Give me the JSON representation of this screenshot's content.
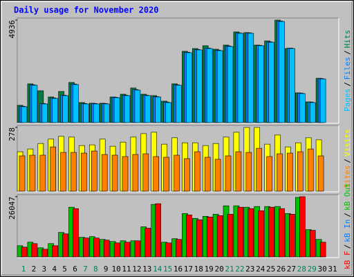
{
  "chart_data": [
    {
      "type": "bar",
      "title": "Daily usage for November 2020",
      "ylim": [
        0,
        4936
      ],
      "yticks": [
        4936
      ],
      "legend_separator": "/",
      "series": [
        {
          "name": "Pages",
          "color": "#00c0ff",
          "values": [
            767,
            1801,
            900,
            1167,
            1301,
            1834,
            900,
            900,
            900,
            1201,
            1301,
            1567,
            1301,
            1234,
            967,
            1801,
            3368,
            3502,
            3568,
            3468,
            3668,
            4302,
            4302,
            3702,
            3869,
            4869,
            3568,
            1401,
            967,
            2101,
            0
          ]
        },
        {
          "name": "Files",
          "color": "#0080ff",
          "values": [
            790,
            1820,
            920,
            1190,
            1320,
            1860,
            920,
            920,
            920,
            1220,
            1320,
            1590,
            1320,
            1250,
            990,
            1820,
            3390,
            3520,
            3590,
            3490,
            3690,
            4320,
            4320,
            3720,
            3890,
            4890,
            3590,
            1420,
            990,
            2120,
            0
          ]
        },
        {
          "name": "Hits",
          "color": "#008040",
          "values": [
            834,
            1868,
            1534,
            1234,
            1501,
            1934,
            967,
            934,
            934,
            1234,
            1367,
            1668,
            1367,
            1301,
            1034,
            1868,
            3435,
            3568,
            3702,
            3535,
            3735,
            4369,
            4336,
            3735,
            3935,
            4936,
            3568,
            1434,
            1000,
            2134,
            0
          ]
        }
      ]
    },
    {
      "type": "bar",
      "ylim": [
        0,
        278
      ],
      "yticks": [
        278
      ],
      "legend_separator": "/",
      "series": [
        {
          "name": "Sites",
          "color": "#ff8000",
          "values": [
            154,
            157,
            157,
            193,
            169,
            169,
            166,
            175,
            160,
            157,
            151,
            160,
            163,
            151,
            148,
            157,
            142,
            172,
            148,
            139,
            154,
            172,
            169,
            187,
            151,
            163,
            166,
            172,
            184,
            154,
            0
          ]
        },
        {
          "name": "Visits",
          "color": "#ffff00",
          "values": [
            172,
            184,
            208,
            227,
            239,
            236,
            199,
            202,
            227,
            196,
            214,
            236,
            251,
            257,
            205,
            233,
            211,
            211,
            199,
            208,
            236,
            257,
            278,
            278,
            205,
            245,
            193,
            211,
            233,
            224,
            0
          ]
        }
      ]
    },
    {
      "type": "bar",
      "ylim": [
        0,
        26047
      ],
      "yticks": [
        26047
      ],
      "legend_separator": "/",
      "categories": [
        "1",
        "2",
        "3",
        "4",
        "5",
        "6",
        "7",
        "8",
        "9",
        "10",
        "11",
        "12",
        "13",
        "14",
        "15",
        "16",
        "17",
        "18",
        "19",
        "20",
        "21",
        "22",
        "23",
        "24",
        "25",
        "26",
        "27",
        "28",
        "29",
        "30",
        "31"
      ],
      "category_colors": [
        "#00805c",
        "#000000",
        "#000000",
        "#000000",
        "#000000",
        "#000000",
        "#00805c",
        "#00805c",
        "#000000",
        "#000000",
        "#000000",
        "#000000",
        "#000000",
        "#00805c",
        "#00805c",
        "#000000",
        "#000000",
        "#000000",
        "#000000",
        "#000000",
        "#00805c",
        "#00805c",
        "#000000",
        "#000000",
        "#000000",
        "#000000",
        "#000000",
        "#00805c",
        "#00805c",
        "#000000",
        "#000000"
      ],
      "series": [
        {
          "name": "kB F",
          "color": "#ff0000",
          "values": [
            4241,
            5755,
            3332,
            4846,
            9996,
            20900,
            8178,
            8178,
            7270,
            6058,
            6361,
            6967,
            12419,
            23020,
            6058,
            7573,
            18174,
            16054,
            17265,
            17871,
            18477,
            21506,
            20900,
            19992,
            21506,
            20900,
            18477,
            26047,
            11510,
            6361,
            0
          ]
        },
        {
          "name": "kB In",
          "color": "#0080ff",
          "values": [
            0,
            0,
            0,
            0,
            0,
            0,
            0,
            0,
            0,
            0,
            0,
            0,
            0,
            0,
            0,
            0,
            0,
            0,
            0,
            0,
            0,
            0,
            0,
            0,
            0,
            0,
            0,
            0,
            0,
            0,
            0
          ]
        },
        {
          "name": "kB Out",
          "color": "#00c000",
          "values": [
            4846,
            6361,
            3938,
            5755,
            10601,
            21506,
            8481,
            8784,
            7573,
            6664,
            6967,
            6967,
            13025,
            22717,
            6361,
            7876,
            18780,
            16660,
            17568,
            18477,
            22112,
            22112,
            21506,
            21809,
            21809,
            21809,
            18780,
            25744,
            11813,
            7573,
            0
          ]
        }
      ]
    }
  ]
}
